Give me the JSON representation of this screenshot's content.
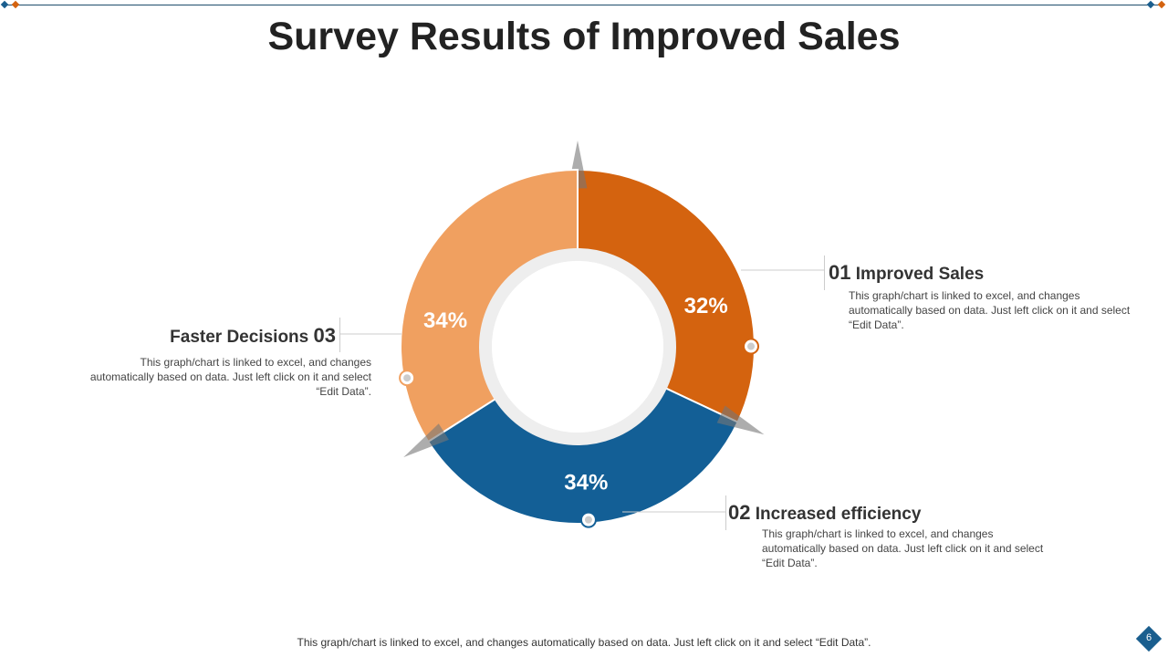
{
  "title": "Survey Results of Improved Sales",
  "chart_data": {
    "type": "pie",
    "title": "Survey Results of Improved Sales",
    "categories": [
      "Improved Sales",
      "Increased efficiency",
      "Faster Decisions"
    ],
    "values": [
      32,
      34,
      34
    ],
    "labels": [
      "32%",
      "34%",
      "34%"
    ],
    "colors": [
      "#D4630F",
      "#135F96",
      "#F0A060"
    ],
    "donut": true
  },
  "callouts": [
    {
      "num": "01",
      "label": "Improved Sales",
      "desc": "This graph/chart is linked to excel, and changes automatically based on data. Just left click on it and select “Edit Data”."
    },
    {
      "num": "02",
      "label": "Increased efficiency",
      "desc": "This graph/chart is linked to excel, and changes automatically based on data. Just left click on it and select “Edit Data”."
    },
    {
      "num": "03",
      "label": "Faster Decisions",
      "desc": "This graph/chart is linked to excel, and changes automatically based on data. Just left click on it and select “Edit Data”."
    }
  ],
  "footer": "This graph/chart is linked to excel, and changes automatically based on data. Just left click on it and select “Edit Data”.",
  "page_number": "6"
}
